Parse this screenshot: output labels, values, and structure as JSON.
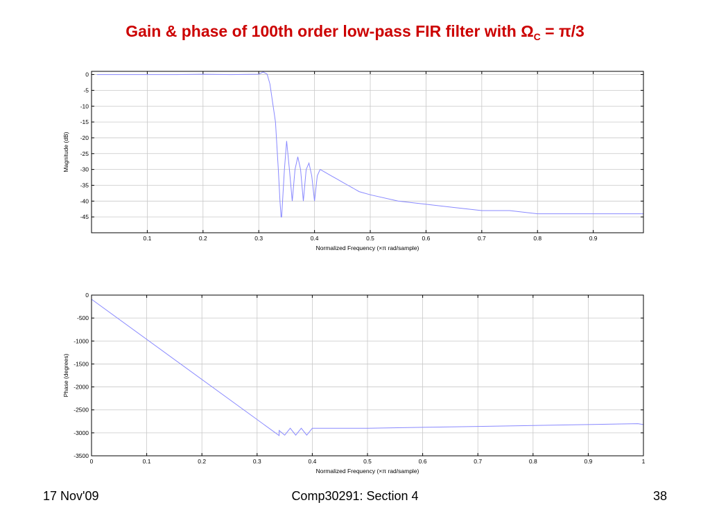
{
  "slide": {
    "title_prefix": "Gain & phase of 100th order low-pass FIR filter with ",
    "title_omega": "Ω",
    "title_sub": "C",
    "title_eq": " = ",
    "title_pi": "π",
    "title_suffix": "/3",
    "title_color": "#cc0000"
  },
  "footer": {
    "date": "17 Nov'09",
    "course": "Comp30291: Section 4",
    "page": "38"
  },
  "chart_data": [
    {
      "type": "line",
      "ylabel": "Magnitude (dB)",
      "xlabel": "Normalized Frequency  (×π rad/sample)",
      "xlim": [
        0.0,
        0.99
      ],
      "ylim": [
        -50,
        1
      ],
      "x_ticks": [
        0.1,
        0.2,
        0.3,
        0.4,
        0.5,
        0.6,
        0.7,
        0.8,
        0.9
      ],
      "x_tick_labels": [
        "0.1",
        "0.2",
        "0.3",
        "0.4",
        "0.5",
        "0.6",
        "0.7",
        "0.8",
        "0.9"
      ],
      "y_ticks": [
        0,
        -5,
        -10,
        -15,
        -20,
        -25,
        -30,
        -35,
        -40,
        -45
      ],
      "y_tick_labels": [
        "0",
        "-5",
        "-10",
        "-15",
        "-20",
        "-25",
        "-30",
        "-35",
        "-40",
        "-45"
      ],
      "grid": true,
      "series": [
        {
          "color": "#8888ff",
          "x": [
            0.01,
            0.08,
            0.15,
            0.2,
            0.25,
            0.3,
            0.308,
            0.315,
            0.32,
            0.33,
            0.335,
            0.338,
            0.34,
            0.341,
            0.346,
            0.35,
            0.355,
            0.36,
            0.365,
            0.37,
            0.375,
            0.38,
            0.385,
            0.39,
            0.395,
            0.4,
            0.405,
            0.41,
            0.42,
            0.43,
            0.44,
            0.45,
            0.46,
            0.47,
            0.48,
            0.5,
            0.55,
            0.6,
            0.65,
            0.7,
            0.75,
            0.8,
            0.85,
            0.9,
            0.95,
            0.99
          ],
          "y": [
            0,
            0,
            0,
            0.1,
            0,
            0.1,
            0.8,
            0.1,
            -3,
            -15,
            -30,
            -40,
            -45,
            -45,
            -30,
            -21,
            -30,
            -40,
            -30,
            -26,
            -30,
            -40,
            -30,
            -28,
            -32,
            -40,
            -32,
            -30,
            -31,
            -32,
            -33,
            -34,
            -35,
            -36,
            -37,
            -38,
            -40,
            -41,
            -42,
            -43,
            -43,
            -44,
            -44,
            -44,
            -44,
            -44
          ]
        }
      ]
    },
    {
      "type": "line",
      "ylabel": "Phase (degrees)",
      "xlabel": "Normalized Frequency  (×π rad/sample)",
      "xlim": [
        0,
        1
      ],
      "ylim": [
        -3500,
        0
      ],
      "x_ticks": [
        0,
        0.1,
        0.2,
        0.3,
        0.4,
        0.5,
        0.6,
        0.7,
        0.8,
        0.9,
        1
      ],
      "x_tick_labels": [
        "0",
        "0.1",
        "0.2",
        "0.3",
        "0.4",
        "0.5",
        "0.6",
        "0.7",
        "0.8",
        "0.9",
        "1"
      ],
      "y_ticks": [
        0,
        -500,
        -1000,
        -1500,
        -2000,
        -2500,
        -3000,
        -3500
      ],
      "y_tick_labels": [
        "0",
        "-500",
        "-1000",
        "-1500",
        "-2000",
        "-2500",
        "-3000",
        "-3500"
      ],
      "grid": true,
      "series": [
        {
          "color": "#8888ff",
          "x": [
            0.0,
            0.34,
            0.34,
            0.35,
            0.36,
            0.37,
            0.38,
            0.39,
            0.4,
            0.5,
            0.6,
            0.7,
            0.8,
            0.9,
            0.99,
            1.0
          ],
          "y": [
            -90,
            -3060,
            -2950,
            -3050,
            -2900,
            -3050,
            -2900,
            -3050,
            -2900,
            -2900,
            -2880,
            -2860,
            -2840,
            -2820,
            -2800,
            -2820
          ]
        }
      ]
    }
  ]
}
